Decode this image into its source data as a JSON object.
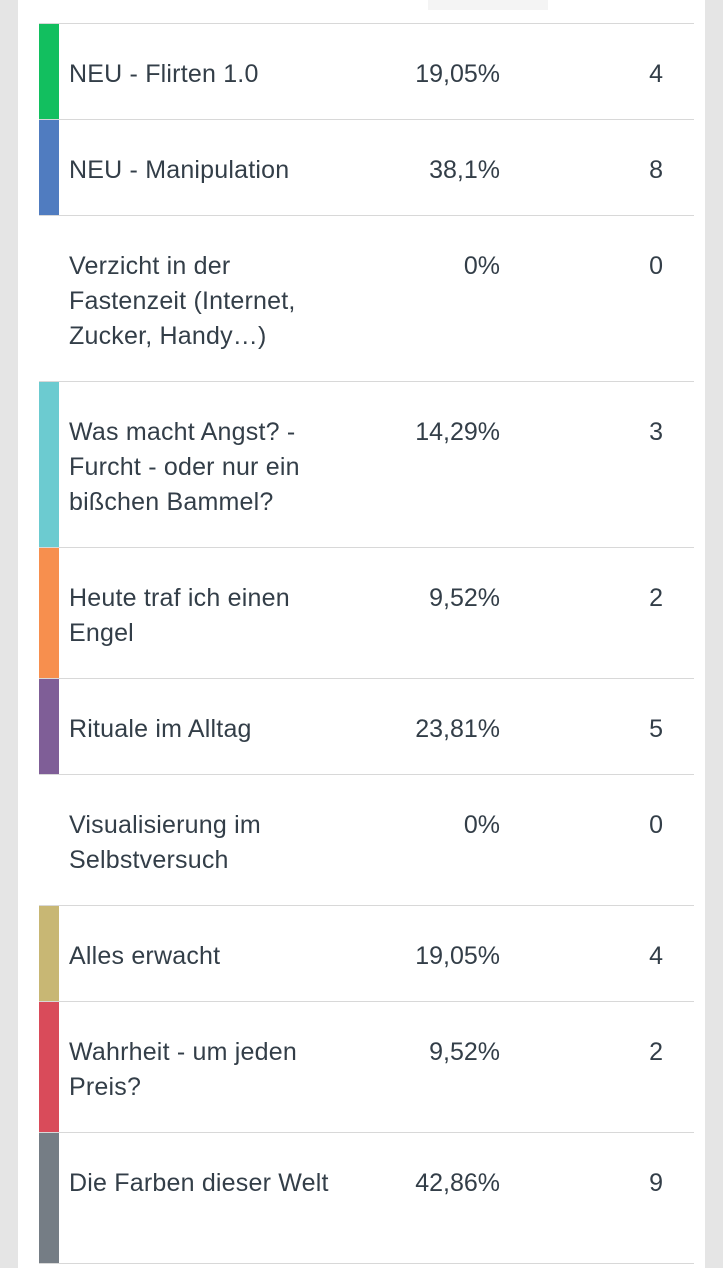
{
  "rows": [
    {
      "label": "NEU - Flirten 1.0",
      "percent": "19,05%",
      "count": "4",
      "color": "#12bf5f",
      "height": 96
    },
    {
      "label": "NEU - Manipulation",
      "percent": "38,1%",
      "count": "8",
      "color": "#507cc0",
      "height": 96
    },
    {
      "label": "Verzicht in der Fastenzeit (Internet, Zucker, Handy…)",
      "percent": "0%",
      "count": "0",
      "color": "",
      "height": 166
    },
    {
      "label": "Was macht Angst? - Furcht - oder nur ein bißchen Bammel?",
      "percent": "14,29%",
      "count": "3",
      "color": "#6ccbd0",
      "height": 166
    },
    {
      "label": "Heute traf ich einen Engel",
      "percent": "9,52%",
      "count": "2",
      "color": "#f78f4e",
      "height": 131
    },
    {
      "label": "Rituale im Alltag",
      "percent": "23,81%",
      "count": "5",
      "color": "#7f5e97",
      "height": 96
    },
    {
      "label": "Visualisierung im Selbstversuch",
      "percent": "0%",
      "count": "0",
      "color": "",
      "height": 131
    },
    {
      "label": "Alles erwacht",
      "percent": "19,05%",
      "count": "4",
      "color": "#c8b774",
      "height": 96
    },
    {
      "label": "Wahrheit - um jeden Preis?",
      "percent": "9,52%",
      "count": "2",
      "color": "#d94b5a",
      "height": 131
    },
    {
      "label": "Die Farben dieser Welt",
      "percent": "42,86%",
      "count": "9",
      "color": "#757d85",
      "height": 131
    }
  ]
}
